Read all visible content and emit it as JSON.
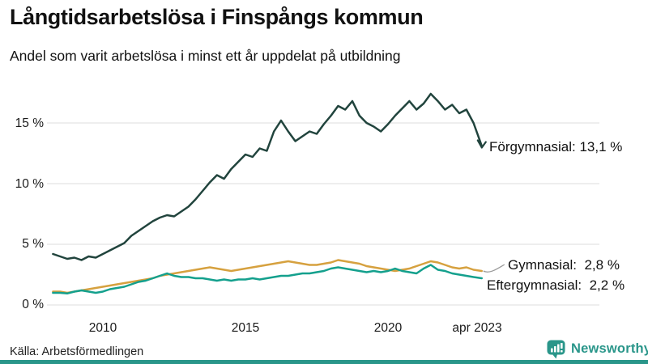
{
  "header": {
    "title": "Långtidsarbetslösa i Finspångs kommun",
    "subtitle": "Andel som varit arbetslösa i minst ett år uppdelat på utbildning"
  },
  "chart_data": {
    "type": "line",
    "title": "Långtidsarbetslösa i Finspångs kommun",
    "subtitle": "Andel som varit arbetslösa i minst ett år uppdelat på utbildning",
    "unit": "%",
    "grid": "horizontal",
    "grid_color": "#e4e4e4",
    "legend_position": "end-labels",
    "ylim": [
      0,
      18.5
    ],
    "xlim": [
      2008.1,
      2023.35
    ],
    "y_ticks": [
      {
        "label": "0 %",
        "v": 0
      },
      {
        "label": "5 %",
        "v": 5
      },
      {
        "label": "10 %",
        "v": 10
      },
      {
        "label": "15 %",
        "v": 15
      }
    ],
    "x_ticks": [
      {
        "label": "2010",
        "t": 2010
      },
      {
        "label": "2015",
        "t": 2015
      },
      {
        "label": "2020",
        "t": 2020
      },
      {
        "label": "apr 2023",
        "t": 2023.29
      }
    ],
    "x": [
      2008.25,
      2008.5,
      2008.75,
      2009.0,
      2009.25,
      2009.5,
      2009.75,
      2010.0,
      2010.25,
      2010.5,
      2010.75,
      2011.0,
      2011.25,
      2011.5,
      2011.75,
      2012.0,
      2012.25,
      2012.5,
      2012.75,
      2013.0,
      2013.25,
      2013.5,
      2013.75,
      2014.0,
      2014.25,
      2014.5,
      2014.75,
      2015.0,
      2015.25,
      2015.5,
      2015.75,
      2016.0,
      2016.25,
      2016.5,
      2016.75,
      2017.0,
      2017.25,
      2017.5,
      2017.75,
      2018.0,
      2018.25,
      2018.5,
      2018.75,
      2019.0,
      2019.25,
      2019.5,
      2019.75,
      2020.0,
      2020.25,
      2020.5,
      2020.75,
      2021.0,
      2021.25,
      2021.5,
      2021.75,
      2022.0,
      2022.25,
      2022.5,
      2022.75,
      2023.0,
      2023.29
    ],
    "series": [
      {
        "name": "Förgymnasial",
        "color": "#21443d",
        "end_value": "13,1 %",
        "end_label": "Förgymnasial: 13,1 %",
        "values": [
          4.2,
          4.0,
          3.8,
          3.9,
          3.7,
          4.0,
          3.9,
          4.2,
          4.5,
          4.8,
          5.1,
          5.7,
          6.1,
          6.5,
          6.9,
          7.2,
          7.4,
          7.3,
          7.7,
          8.1,
          8.7,
          9.4,
          10.1,
          10.7,
          10.4,
          11.2,
          11.8,
          12.4,
          12.2,
          12.9,
          12.7,
          14.3,
          15.2,
          14.3,
          13.5,
          13.9,
          14.3,
          14.1,
          14.9,
          15.6,
          16.4,
          16.1,
          16.8,
          15.6,
          15.0,
          14.7,
          14.3,
          14.9,
          15.6,
          16.2,
          16.8,
          16.1,
          16.6,
          17.4,
          16.8,
          16.1,
          16.5,
          15.8,
          16.1,
          15.0,
          13.1
        ]
      },
      {
        "name": "Gymnasial",
        "color": "#d6a13f",
        "end_value": "2,8 %",
        "end_label": "Gymnasial:  2,8 %",
        "values": [
          1.1,
          1.1,
          1.0,
          1.1,
          1.2,
          1.3,
          1.4,
          1.5,
          1.6,
          1.7,
          1.8,
          1.9,
          2.0,
          2.1,
          2.2,
          2.4,
          2.5,
          2.6,
          2.7,
          2.8,
          2.9,
          3.0,
          3.1,
          3.0,
          2.9,
          2.8,
          2.9,
          3.0,
          3.1,
          3.2,
          3.3,
          3.4,
          3.5,
          3.6,
          3.5,
          3.4,
          3.3,
          3.3,
          3.4,
          3.5,
          3.7,
          3.6,
          3.5,
          3.4,
          3.2,
          3.1,
          3.0,
          2.9,
          2.8,
          2.9,
          3.0,
          3.2,
          3.4,
          3.6,
          3.5,
          3.3,
          3.1,
          3.0,
          3.1,
          2.9,
          2.8
        ]
      },
      {
        "name": "Eftergymnasial",
        "color": "#14a08d",
        "end_value": "2,2 %",
        "end_label": "Eftergymnasial:  2,2 %",
        "values": [
          1.0,
          1.0,
          0.95,
          1.1,
          1.2,
          1.1,
          1.0,
          1.1,
          1.3,
          1.4,
          1.5,
          1.7,
          1.9,
          2.0,
          2.2,
          2.4,
          2.6,
          2.4,
          2.3,
          2.3,
          2.2,
          2.2,
          2.1,
          2.0,
          2.1,
          2.0,
          2.1,
          2.1,
          2.2,
          2.1,
          2.2,
          2.3,
          2.4,
          2.4,
          2.5,
          2.6,
          2.6,
          2.7,
          2.8,
          3.0,
          3.1,
          3.0,
          2.9,
          2.8,
          2.7,
          2.8,
          2.7,
          2.8,
          3.0,
          2.8,
          2.7,
          2.6,
          3.0,
          3.3,
          2.9,
          2.8,
          2.6,
          2.5,
          2.4,
          2.3,
          2.2
        ]
      }
    ]
  },
  "footer": {
    "source": "Källa: Arbetsförmedlingen",
    "brand": "Newsworthy",
    "brand_color": "#2a968a"
  }
}
